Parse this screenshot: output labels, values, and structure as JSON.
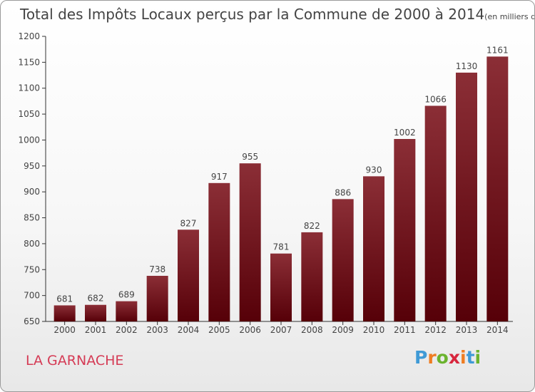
{
  "title": "Total des Impôts Locaux perçus par la Commune de 2000 à 2014",
  "unit": "(en milliers d'€)",
  "commune": "LA GARNACHE",
  "logo": {
    "letters": [
      "P",
      "r",
      "o",
      "x",
      "i",
      "t",
      "i"
    ],
    "colors": [
      "#3f9ad6",
      "#ef7d22",
      "#6bb32e",
      "#d7263d",
      "#ef7d22",
      "#3f9ad6",
      "#6bb32e"
    ]
  },
  "colors": {
    "bar_top": "#8b2e36",
    "bar_bottom": "#560008",
    "text": "#444444",
    "commune": "#d53b55"
  },
  "chart_data": {
    "type": "bar",
    "categories": [
      "2000",
      "2001",
      "2002",
      "2003",
      "2004",
      "2005",
      "2006",
      "2007",
      "2008",
      "2009",
      "2010",
      "2011",
      "2012",
      "2013",
      "2014"
    ],
    "values": [
      681,
      682,
      689,
      738,
      827,
      917,
      955,
      781,
      822,
      886,
      930,
      1002,
      1066,
      1130,
      1161
    ],
    "ylim": [
      650,
      1200
    ],
    "yticks": [
      650,
      700,
      750,
      800,
      850,
      900,
      950,
      1000,
      1050,
      1100,
      1150,
      1200
    ],
    "grid": false
  }
}
